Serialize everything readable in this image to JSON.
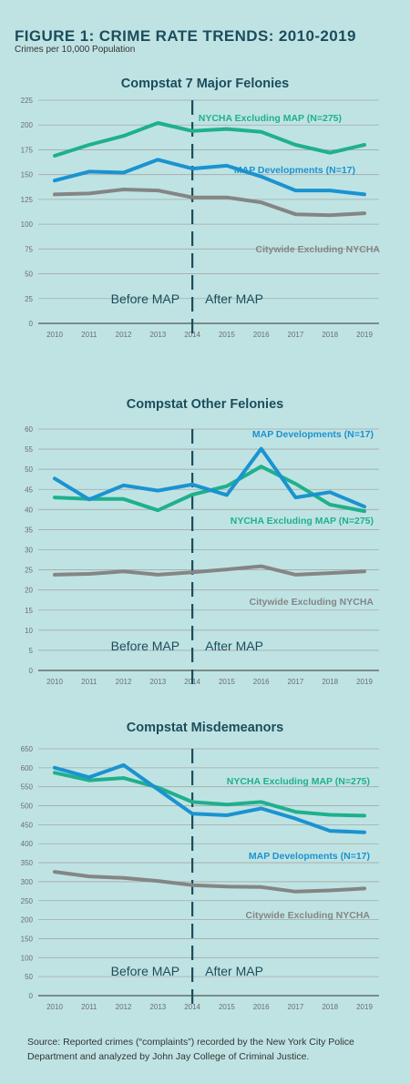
{
  "figure": {
    "title": "FIGURE 1: CRIME RATE TRENDS: 2010-2019",
    "subtitle": "Crimes per 10,000 Population",
    "source": "Source: Reported crimes (“complaints”) recorded by the New York City Police Department and analyzed by John Jay College of Criminal Justice."
  },
  "colors": {
    "nycha": "#1fb08e",
    "map": "#1a93d0",
    "citywide": "#858585",
    "divider": "#1b4d5c",
    "axis": "#6d6d6d",
    "text_dark": "#1b4d5c"
  },
  "chart_data": [
    {
      "type": "line",
      "title": "Compstat 7 Major Felonies",
      "x": [
        2010,
        2011,
        2012,
        2013,
        2014,
        2015,
        2016,
        2017,
        2018,
        2019
      ],
      "ylim": [
        0,
        225
      ],
      "yticks": [
        0,
        25,
        50,
        75,
        100,
        125,
        150,
        175,
        200,
        225
      ],
      "divider_x": 2014,
      "annotations": {
        "before": "Before MAP",
        "after": "After MAP"
      },
      "series": [
        {
          "name": "NYCHA Excluding MAP (N=275)",
          "key": "nycha",
          "values": [
            169,
            180,
            189,
            202,
            194,
            196,
            193,
            180,
            172,
            180
          ]
        },
        {
          "name": "MAP Developments (N=17)",
          "key": "map",
          "values": [
            144,
            153,
            152,
            165,
            156,
            159,
            148,
            134,
            134,
            130
          ]
        },
        {
          "name": "Citywide Excluding NYCHA",
          "key": "citywide",
          "values": [
            130,
            131,
            135,
            134,
            127,
            127,
            122,
            110,
            109,
            111
          ]
        }
      ]
    },
    {
      "type": "line",
      "title": "Compstat Other Felonies",
      "x": [
        2010,
        2011,
        2012,
        2013,
        2014,
        2015,
        2016,
        2017,
        2018,
        2019
      ],
      "ylim": [
        0,
        60
      ],
      "yticks": [
        0,
        5,
        10,
        15,
        20,
        25,
        30,
        35,
        40,
        45,
        50,
        55,
        60
      ],
      "divider_x": 2014,
      "annotations": {
        "before": "Before MAP",
        "after": "After MAP"
      },
      "series": [
        {
          "name": "MAP Developments (N=17)",
          "key": "map",
          "values": [
            47.7,
            42.5,
            46,
            44.7,
            46.2,
            43.6,
            55.1,
            43,
            44.3,
            40.7
          ]
        },
        {
          "name": "NYCHA Excluding MAP (N=275)",
          "key": "nycha",
          "values": [
            43,
            42.6,
            42.6,
            39.8,
            43.7,
            45.8,
            50.7,
            46.4,
            41.2,
            39.6
          ]
        },
        {
          "name": "Citywide Excluding NYCHA",
          "key": "citywide",
          "values": [
            23.8,
            24,
            24.6,
            23.8,
            24.4,
            25.1,
            25.9,
            23.8,
            24.2,
            24.6
          ]
        }
      ]
    },
    {
      "type": "line",
      "title": "Compstat Misdemeanors",
      "x": [
        2010,
        2011,
        2012,
        2013,
        2014,
        2015,
        2016,
        2017,
        2018,
        2019
      ],
      "ylim": [
        0,
        650
      ],
      "yticks": [
        0,
        50,
        100,
        150,
        200,
        250,
        300,
        350,
        400,
        450,
        500,
        550,
        600,
        650
      ],
      "divider_x": 2014,
      "annotations": {
        "before": "Before MAP",
        "after": "After MAP"
      },
      "series": [
        {
          "name": "NYCHA Excluding MAP (N=275)",
          "key": "nycha",
          "values": [
            587,
            567,
            573,
            548,
            510,
            503,
            510,
            484,
            476,
            474
          ]
        },
        {
          "name": "MAP Developments (N=17)",
          "key": "map",
          "values": [
            600,
            575,
            607,
            543,
            479,
            475,
            493,
            466,
            434,
            430
          ]
        },
        {
          "name": "Citywide Excluding NYCHA",
          "key": "citywide",
          "values": [
            326,
            314,
            310,
            302,
            291,
            287,
            286,
            274,
            277,
            282
          ]
        }
      ]
    }
  ]
}
